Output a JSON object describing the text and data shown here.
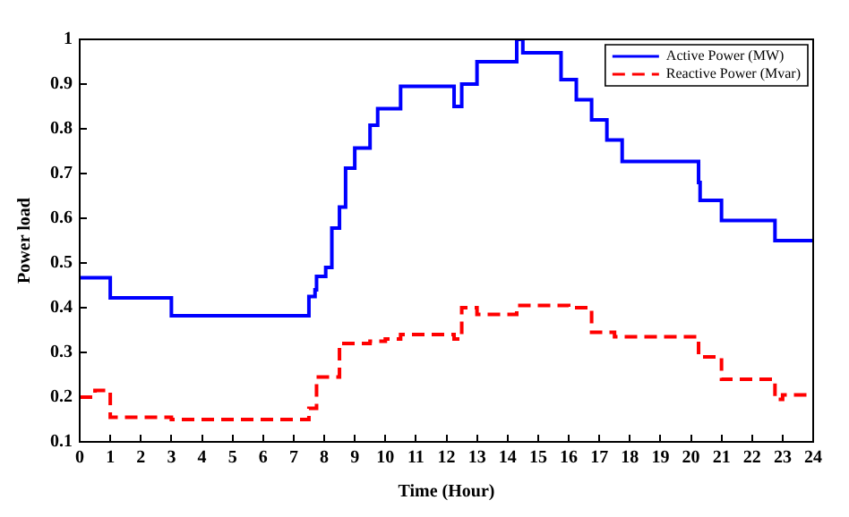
{
  "chart_data": {
    "type": "step",
    "xlabel": "Time (Hour)",
    "ylabel": "Power load",
    "xlim": [
      0,
      24
    ],
    "xticks": [
      0,
      1,
      2,
      3,
      4,
      5,
      6,
      7,
      8,
      9,
      10,
      11,
      12,
      13,
      14,
      15,
      16,
      17,
      18,
      19,
      20,
      21,
      22,
      23,
      24
    ],
    "ylim": [
      0.1,
      1
    ],
    "yticks": [
      0.1,
      0.2,
      0.3,
      0.4,
      0.5,
      0.6,
      0.7,
      0.8,
      0.9,
      1
    ],
    "grid": false,
    "legend": "top right",
    "series": [
      {
        "name": "Active Power (MW)",
        "color": "#0000ff",
        "line_style": "solid",
        "x": [
          0,
          1,
          3,
          7.5,
          7.7,
          7.75,
          8.05,
          8.25,
          8.5,
          8.7,
          9,
          9.5,
          9.75,
          10.5,
          12.25,
          12.5,
          13,
          14.3,
          14.5,
          15.75,
          16.25,
          16.75,
          17.25,
          17.75,
          20.25,
          20.3,
          21,
          22.75,
          24
        ],
        "values": [
          0.467,
          0.422,
          0.382,
          0.425,
          0.44,
          0.47,
          0.49,
          0.578,
          0.625,
          0.712,
          0.757,
          0.808,
          0.845,
          0.895,
          0.85,
          0.9,
          0.95,
          1,
          0.97,
          0.91,
          0.865,
          0.82,
          0.775,
          0.727,
          0.68,
          0.64,
          0.595,
          0.55,
          0.55
        ]
      },
      {
        "name": "Reactive Power (Mvar)",
        "color": "#ff0000",
        "line_style": "dashed",
        "x": [
          0,
          0.5,
          1,
          3,
          7.5,
          7.75,
          8.5,
          9.5,
          10,
          10.5,
          12.25,
          12.5,
          13,
          14.3,
          16,
          16.75,
          17.5,
          20.25,
          21,
          22.75,
          23,
          24
        ],
        "values": [
          0.2,
          0.215,
          0.155,
          0.15,
          0.175,
          0.245,
          0.32,
          0.325,
          0.33,
          0.34,
          0.33,
          0.4,
          0.385,
          0.405,
          0.4,
          0.345,
          0.335,
          0.29,
          0.24,
          0.195,
          0.205,
          0.205
        ]
      }
    ]
  }
}
